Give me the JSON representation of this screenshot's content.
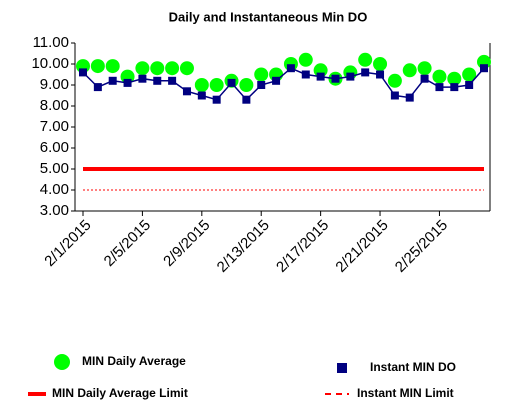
{
  "chart_data": {
    "type": "line",
    "title": "Daily and Instantaneous Min DO",
    "categories": [
      "2/1/2015",
      null,
      null,
      null,
      "2/5/2015",
      null,
      null,
      null,
      "2/9/2015",
      null,
      null,
      null,
      "2/13/2015",
      null,
      null,
      null,
      "2/17/2015",
      null,
      null,
      null,
      "2/21/2015",
      null,
      null,
      null,
      "2/25/2015",
      null,
      null,
      null
    ],
    "series": [
      {
        "name": "MIN Daily Average",
        "color": "#00ff00",
        "style": "circle",
        "values": [
          9.9,
          9.9,
          9.9,
          9.4,
          9.8,
          9.8,
          9.8,
          9.8,
          9.0,
          9.0,
          9.2,
          9.0,
          9.5,
          9.5,
          10.0,
          10.2,
          9.7,
          9.3,
          9.6,
          10.2,
          10.0,
          9.2,
          9.7,
          9.8,
          9.4,
          9.3,
          9.5,
          10.1
        ]
      },
      {
        "name": "Instant MIN  DO",
        "color": "#000080",
        "style": "square-line",
        "values": [
          9.6,
          8.9,
          9.2,
          9.1,
          9.3,
          9.2,
          9.2,
          8.7,
          8.5,
          8.3,
          9.1,
          8.3,
          9.0,
          9.2,
          9.8,
          9.5,
          9.4,
          9.3,
          9.4,
          9.6,
          9.5,
          8.5,
          8.4,
          9.3,
          8.9,
          8.9,
          9.0,
          9.8
        ]
      },
      {
        "name": "MIN Daily Average Limit",
        "color": "#ff0000",
        "style": "line",
        "values": [
          5,
          5,
          5,
          5,
          5,
          5,
          5,
          5,
          5,
          5,
          5,
          5,
          5,
          5,
          5,
          5,
          5,
          5,
          5,
          5,
          5,
          5,
          5,
          5,
          5,
          5,
          5,
          5
        ]
      },
      {
        "name": "Instant MIN Limit",
        "color": "#ff0000",
        "style": "dashed",
        "values": [
          4,
          4,
          4,
          4,
          4,
          4,
          4,
          4,
          4,
          4,
          4,
          4,
          4,
          4,
          4,
          4,
          4,
          4,
          4,
          4,
          4,
          4,
          4,
          4,
          4,
          4,
          4,
          4
        ]
      }
    ],
    "ylim": [
      3,
      11
    ],
    "yticks": [
      {
        "value": 3,
        "label": "3.00"
      },
      {
        "value": 4,
        "label": "4.00"
      },
      {
        "value": 5,
        "label": "5.00"
      },
      {
        "value": 6,
        "label": "6.00"
      },
      {
        "value": 7,
        "label": "7.00"
      },
      {
        "value": 8,
        "label": "8.00"
      },
      {
        "value": 9,
        "label": "9.00"
      },
      {
        "value": 10,
        "label": "10.00"
      },
      {
        "value": 11,
        "label": "11.00"
      }
    ],
    "grid": false,
    "legend": "bottom"
  }
}
